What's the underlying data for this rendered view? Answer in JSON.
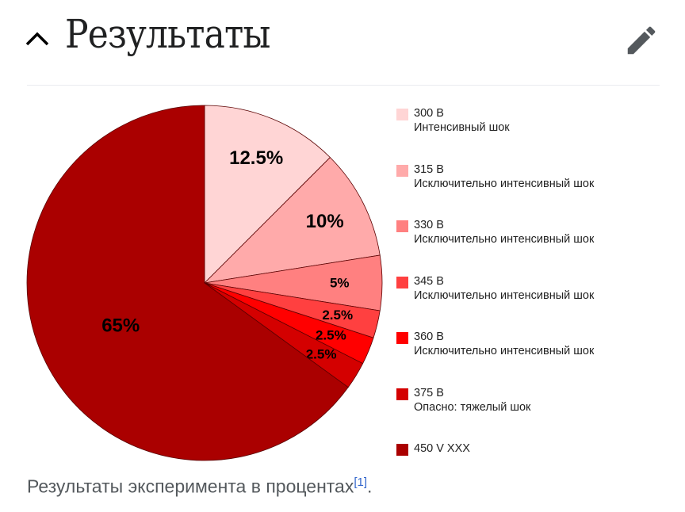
{
  "header": {
    "title": "Результаты",
    "collapse_icon": "chevron-up-icon",
    "edit_icon": "pencil-icon"
  },
  "chart_data": {
    "type": "pie",
    "start": "top",
    "direction": "clockwise",
    "slices": [
      {
        "value": 12.5,
        "label": "12.5%",
        "color": "#ffd5d5"
      },
      {
        "value": 10,
        "label": "10%",
        "color": "#ffaaaa"
      },
      {
        "value": 5,
        "label": "5%",
        "color": "#ff8080"
      },
      {
        "value": 2.5,
        "label": "2.5%",
        "color": "#ff4040"
      },
      {
        "value": 2.5,
        "label": "2.5%",
        "color": "#ff0000"
      },
      {
        "value": 2.5,
        "label": "2.5%",
        "color": "#d40000"
      },
      {
        "value": 65,
        "label": "65%",
        "color": "#aa0000"
      }
    ],
    "legend": [
      {
        "line1": "300 В",
        "line2": "Интенсивный шок",
        "color": "#ffd5d5"
      },
      {
        "line1": "315 В",
        "line2": "Исключительно интенсивный шок",
        "color": "#ffaaaa"
      },
      {
        "line1": "330 В",
        "line2": "Исключительно интенсивный шок",
        "color": "#ff8080"
      },
      {
        "line1": "345 В",
        "line2": "Исключительно интенсивный шок",
        "color": "#ff4040"
      },
      {
        "line1": "360 В",
        "line2": "Исключительно интенсивный шок",
        "color": "#ff0000"
      },
      {
        "line1": "375 В",
        "line2": "Опасно: тяжелый шок",
        "color": "#d40000"
      },
      {
        "line1": "450 V XXX",
        "line2": "",
        "color": "#aa0000"
      }
    ],
    "legend_position": "right"
  },
  "caption": {
    "text": "Результаты эксперимента в процентах",
    "ref": "[1]",
    "end": "."
  }
}
